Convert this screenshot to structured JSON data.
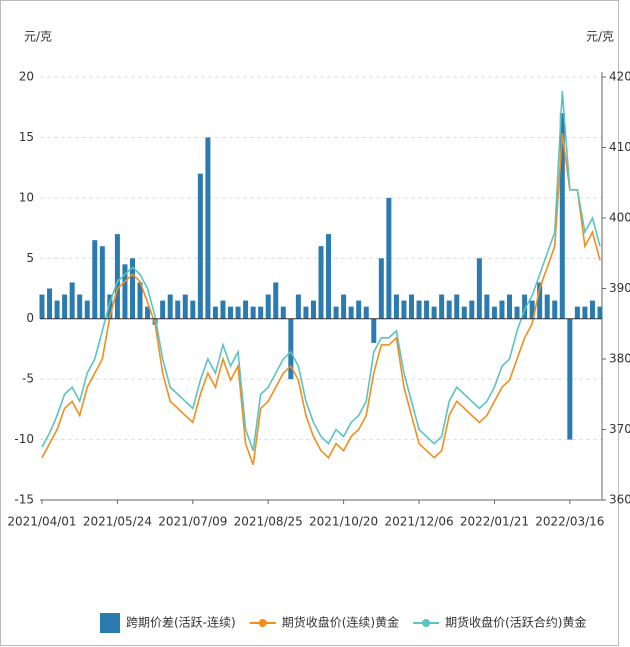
{
  "chart_data": {
    "type": "combo",
    "y_label": "元/克",
    "y2_label": "元/克",
    "categories": [
      "2021/04/01",
      null,
      null,
      null,
      null,
      null,
      null,
      null,
      null,
      null,
      "2021/05/24",
      null,
      null,
      null,
      null,
      null,
      null,
      null,
      null,
      null,
      "2021/07/09",
      null,
      null,
      null,
      null,
      null,
      null,
      null,
      null,
      null,
      "2021/08/25",
      null,
      null,
      null,
      null,
      null,
      null,
      null,
      null,
      null,
      "2021/10/20",
      null,
      null,
      null,
      null,
      null,
      null,
      null,
      null,
      null,
      "2021/12/06",
      null,
      null,
      null,
      null,
      null,
      null,
      null,
      null,
      null,
      "2022/01/21",
      null,
      null,
      null,
      null,
      null,
      null,
      null,
      null,
      null,
      "2022/03/16",
      null,
      null,
      null,
      null
    ],
    "ylim": [
      -15,
      20
    ],
    "yticks": [
      -15,
      -10,
      -5,
      0,
      5,
      10,
      15,
      20
    ],
    "y2lim": [
      360,
      420
    ],
    "y2ticks": [
      360,
      370,
      380,
      390,
      400,
      410,
      420
    ],
    "grid": true,
    "legend": "bottom",
    "series": [
      {
        "name": "跨期价差(活跃-连续)",
        "type": "bar",
        "color": "#2b7bb0",
        "values": [
          2,
          2.5,
          1.5,
          2,
          3,
          2,
          1.5,
          6.5,
          6,
          2,
          7,
          4.5,
          5,
          3,
          1,
          -0.5,
          1.5,
          2,
          1.5,
          2,
          1.5,
          12,
          15,
          1,
          1.5,
          1,
          1,
          1.5,
          1,
          1,
          2,
          3,
          1,
          -5,
          2,
          1,
          1.5,
          6,
          7,
          1,
          2,
          1,
          1.5,
          1,
          -2,
          5,
          10,
          2,
          1.5,
          2,
          1.5,
          1.5,
          1,
          2,
          1.5,
          2,
          1,
          1.5,
          5,
          2,
          1,
          1.5,
          2,
          1,
          2,
          1.5,
          3,
          2,
          1.5,
          17,
          -10,
          1,
          1,
          1.5,
          1
        ]
      },
      {
        "name": "期货收盘价(连续)黄金",
        "type": "line",
        "axis": "y2",
        "color": "#f28e1c",
        "values": [
          366,
          368,
          370,
          373,
          374,
          372,
          376,
          378,
          380,
          386,
          390,
          391,
          392,
          391,
          388,
          385,
          378,
          374,
          373,
          372,
          371,
          375,
          378,
          376,
          380,
          377,
          379,
          368,
          365,
          373,
          374,
          376,
          378,
          379,
          377,
          372,
          369,
          367,
          366,
          368,
          367,
          369,
          370,
          372,
          378,
          382,
          382,
          383,
          376,
          372,
          368,
          367,
          366,
          367,
          372,
          374,
          373,
          372,
          371,
          372,
          374,
          376,
          377,
          380,
          383,
          385,
          390,
          393,
          396,
          412,
          404,
          404,
          396,
          398,
          394
        ]
      },
      {
        "name": "期货收盘价(活跃合约)黄金",
        "type": "line",
        "axis": "y2",
        "color": "#5cc3c3",
        "values": [
          367.5,
          369.5,
          372,
          375,
          376,
          374,
          378,
          380,
          384,
          388,
          391,
          392,
          393,
          392,
          390,
          386,
          380,
          376,
          375,
          374,
          373,
          377,
          380,
          378,
          382,
          379,
          381,
          370,
          367,
          375,
          376,
          378,
          380,
          381,
          379,
          374,
          371,
          369,
          368,
          370,
          369,
          371,
          372,
          374,
          381,
          383,
          383,
          384,
          378,
          374,
          370,
          369,
          368,
          369,
          374,
          376,
          375,
          374,
          373,
          374,
          376,
          379,
          380,
          384,
          387,
          389,
          392,
          395,
          398,
          418,
          404,
          404,
          398,
          400,
          396
        ]
      }
    ]
  }
}
